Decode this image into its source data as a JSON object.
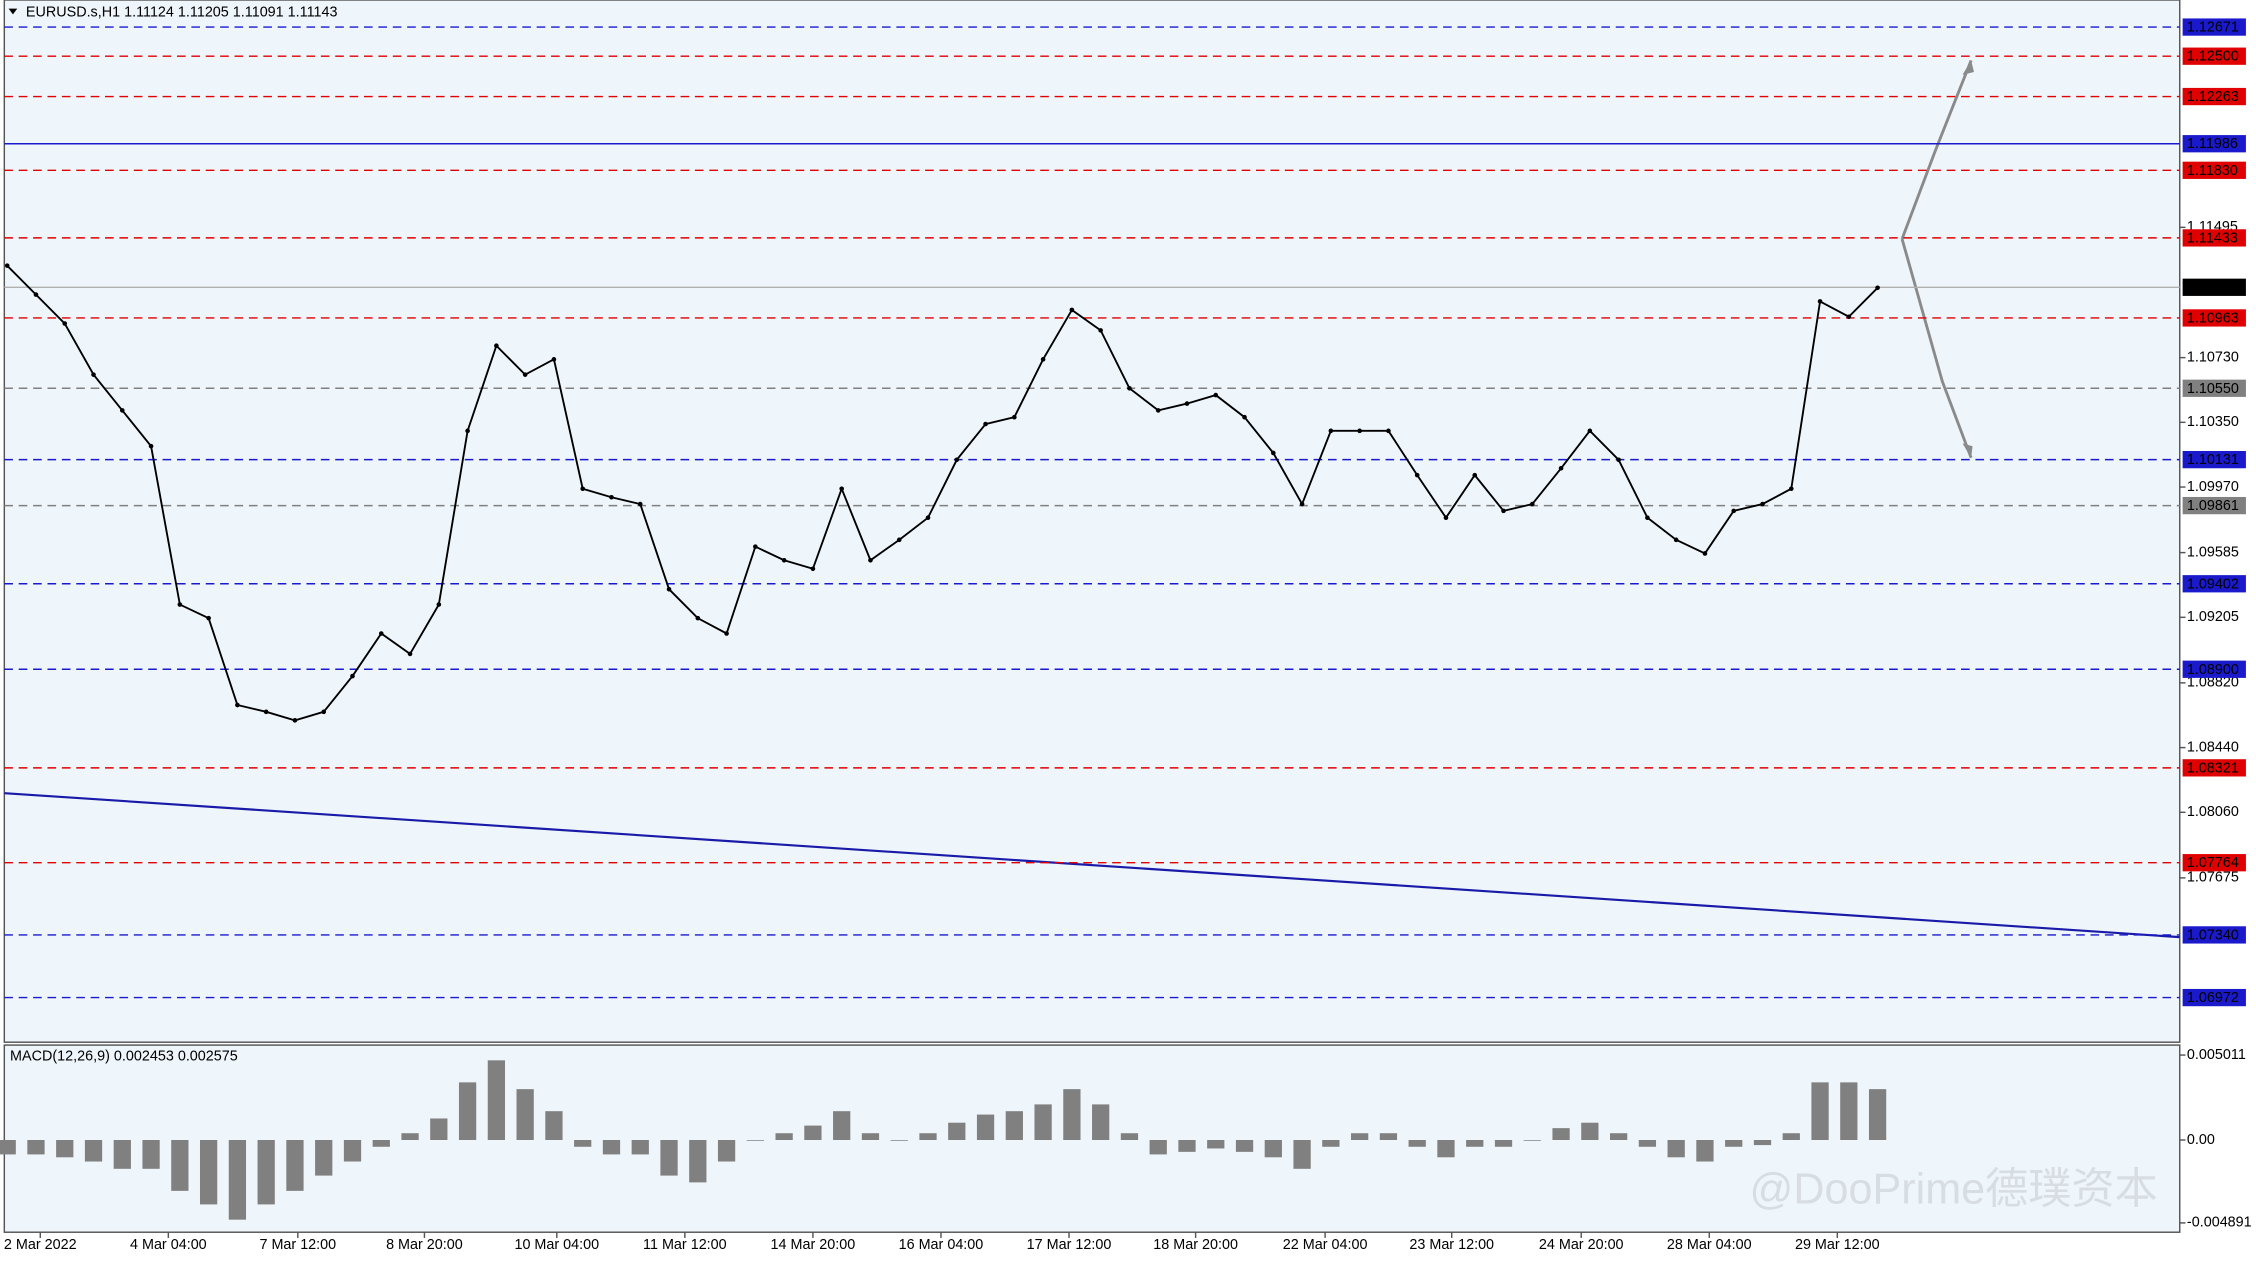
{
  "chart_data": [
    {
      "type": "line",
      "title": "EURUSD.s,H1  1.11124 1.11205 1.11091 1.11143",
      "x": [
        0,
        1,
        2,
        3,
        4,
        5,
        6,
        7,
        8,
        9,
        10,
        11,
        12,
        13,
        14,
        15,
        16,
        17,
        18,
        19,
        20,
        21,
        22,
        23,
        24,
        25,
        26,
        27,
        28,
        29,
        30,
        31,
        32,
        33,
        34,
        35,
        36,
        37,
        38,
        39,
        40,
        41,
        42,
        43,
        44,
        45,
        46,
        47,
        48,
        49,
        50,
        51,
        52,
        53,
        54,
        55,
        56,
        57,
        58,
        59,
        60,
        61,
        62,
        63,
        64,
        65
      ],
      "series": [
        {
          "name": "EURUSD.s",
          "color": "#000000",
          "values": [
            1.1127,
            1.111,
            1.1093,
            1.1063,
            1.1042,
            1.1021,
            1.0928,
            1.092,
            1.0869,
            1.0865,
            1.086,
            1.0865,
            1.0886,
            1.0911,
            1.0899,
            1.0928,
            1.103,
            1.108,
            1.1063,
            1.1072,
            1.0996,
            1.0991,
            1.0987,
            1.0937,
            1.092,
            1.0911,
            1.0962,
            1.0954,
            1.0949,
            1.0996,
            1.0954,
            1.0966,
            1.0979,
            1.1013,
            1.1034,
            1.1038,
            1.1072,
            1.1101,
            1.1089,
            1.1055,
            1.1042,
            1.1046,
            1.1051,
            1.1038,
            1.1017,
            1.0987,
            1.103,
            1.103,
            1.103,
            1.1004,
            1.0979,
            1.1004,
            1.0983,
            1.0987,
            1.1008,
            1.103,
            1.1013,
            1.0979,
            1.0966,
            1.0958,
            1.0983,
            1.0987,
            1.0996,
            1.1106,
            1.1097,
            1.1114
          ]
        }
      ],
      "xlim": [
        -0.1,
        75.5
      ],
      "xticks": [
        {
          "value": 1.15,
          "label": "2 Mar 2022"
        },
        {
          "value": 5.6,
          "label": "4 Mar 04:00"
        },
        {
          "value": 10.1,
          "label": "7 Mar 12:00"
        },
        {
          "value": 14.5,
          "label": "8 Mar 20:00"
        },
        {
          "value": 19.1,
          "label": "10 Mar 04:00"
        },
        {
          "value": 23.55,
          "label": "11 Mar 12:00"
        },
        {
          "value": 28,
          "label": "14 Mar 20:00"
        },
        {
          "value": 32.45,
          "label": "16 Mar 04:00"
        },
        {
          "value": 36.9,
          "label": "17 Mar 12:00"
        },
        {
          "value": 41.3,
          "label": "18 Mar 20:00"
        },
        {
          "value": 45.8,
          "label": "22 Mar 04:00"
        },
        {
          "value": 50.2,
          "label": "23 Mar 12:00"
        },
        {
          "value": 54.7,
          "label": "24 Mar 20:00"
        },
        {
          "value": 59.15,
          "label": "28 Mar 04:00"
        },
        {
          "value": 63.6,
          "label": "29 Mar 12:00"
        }
      ],
      "ylim": [
        1.0671,
        1.1283
      ],
      "yticks": [
        1.11495,
        {
          "value": 1.1073,
          "label": "1.10730"
        },
        {
          "value": 1.1035,
          "label": "1.10350"
        },
        {
          "value": 1.0997,
          "label": "1.09970"
        },
        1.09585,
        1.09205,
        {
          "value": 1.0882,
          "label": "1.08820"
        },
        {
          "value": 1.0844,
          "label": "1.08440"
        },
        {
          "value": 1.0806,
          "label": "1.08060"
        },
        1.07675
      ],
      "levels": [
        {
          "value": 1.12671,
          "color": "#1a1acc"
        },
        {
          "value": 1.125,
          "label": "1.12500",
          "color": "#e00000"
        },
        {
          "value": 1.12263,
          "color": "#e00000"
        },
        {
          "value": 1.11986,
          "color": "#1a1acc"
        },
        {
          "value": 1.1183,
          "label": "1.11830",
          "color": "#e00000"
        },
        {
          "value": 1.11433,
          "color": "#e00000"
        },
        {
          "value": 1.11143,
          "color": "#000000"
        },
        {
          "value": 1.10963,
          "color": "#e00000"
        },
        {
          "value": 1.1055,
          "label": "1.10550",
          "color": "#808080"
        },
        {
          "value": 1.10131,
          "color": "#1a1acc"
        },
        {
          "value": 1.09861,
          "color": "#808080"
        },
        {
          "value": 1.09402,
          "color": "#1a1acc"
        },
        {
          "value": 1.089,
          "label": "1.08900",
          "color": "#1a1acc"
        },
        {
          "value": 1.08321,
          "color": "#e00000"
        },
        {
          "value": 1.07764,
          "color": "#e00000"
        },
        {
          "value": 1.0734,
          "label": "1.07340",
          "color": "#1a1acc"
        },
        {
          "value": 1.06972,
          "color": "#1a1acc"
        }
      ],
      "watermark": "@DooPrime德璞资本"
    },
    {
      "type": "bar",
      "title": "MACD(12,26,9) 0.002453 0.002575",
      "color": "#808080",
      "values": [
        -0.00085,
        -0.00085,
        -0.00102,
        -0.00127,
        -0.0017,
        -0.0017,
        -0.003,
        -0.0038,
        -0.0047,
        -0.0038,
        -0.003,
        -0.0021,
        -0.00127,
        -0.0004,
        0.0004,
        0.00127,
        0.0034,
        0.0047,
        0.003,
        0.0017,
        -0.0004,
        -0.00085,
        -0.00085,
        -0.0021,
        -0.0025,
        -0.00127,
        0,
        0.0004,
        0.00085,
        0.0017,
        0.0004,
        0,
        0.0004,
        0.00102,
        0.0015,
        0.0017,
        0.0021,
        0.003,
        0.0021,
        0.0004,
        -0.00085,
        -0.0007,
        -0.0005,
        -0.0007,
        -0.00102,
        -0.0017,
        -0.0004,
        0.0004,
        0.0004,
        -0.0004,
        -0.00102,
        -0.0004,
        -0.0004,
        0,
        0.0007,
        0.00102,
        0.0004,
        -0.0004,
        -0.00102,
        -0.00127,
        -0.0004,
        -0.0003,
        0.0004,
        0.0034,
        0.0034,
        0.003
      ],
      "ylim": [
        -0.00544,
        0.0056
      ],
      "yticks": [
        0.005011,
        {
          "value": 0,
          "label": "0.00"
        },
        -0.004891
      ]
    }
  ]
}
